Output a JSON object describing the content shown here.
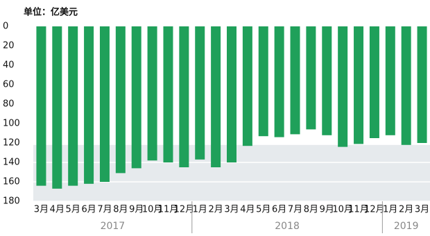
{
  "chart_data": {
    "type": "bar",
    "title": "单位：亿美元",
    "categories": [
      "3月",
      "4月",
      "5月",
      "6月",
      "7月",
      "8月",
      "9月",
      "10月",
      "11月",
      "12月",
      "1月",
      "2月",
      "3月",
      "4月",
      "5月",
      "6月",
      "7月",
      "8月",
      "9月",
      "10月",
      "11月",
      "12月",
      "1月",
      "2月",
      "3月"
    ],
    "values": [
      164,
      167,
      164,
      162,
      160,
      151,
      146,
      138,
      140,
      145,
      137,
      145,
      140,
      123,
      113,
      114,
      111,
      106,
      112,
      124,
      121,
      115,
      112,
      122,
      120
    ],
    "color": "#1fa05a",
    "years": [
      {
        "label": "2017",
        "count": 10
      },
      {
        "label": "2018",
        "count": 12
      },
      {
        "label": "2019",
        "count": 3
      }
    ],
    "ylim": [
      0,
      180
    ],
    "yticks": [
      0,
      20,
      40,
      60,
      80,
      100,
      120,
      140,
      160,
      180
    ],
    "y_inverted": true,
    "shaded_range": [
      122,
      180
    ],
    "shade_color": "#e6eaed",
    "grid": true
  }
}
